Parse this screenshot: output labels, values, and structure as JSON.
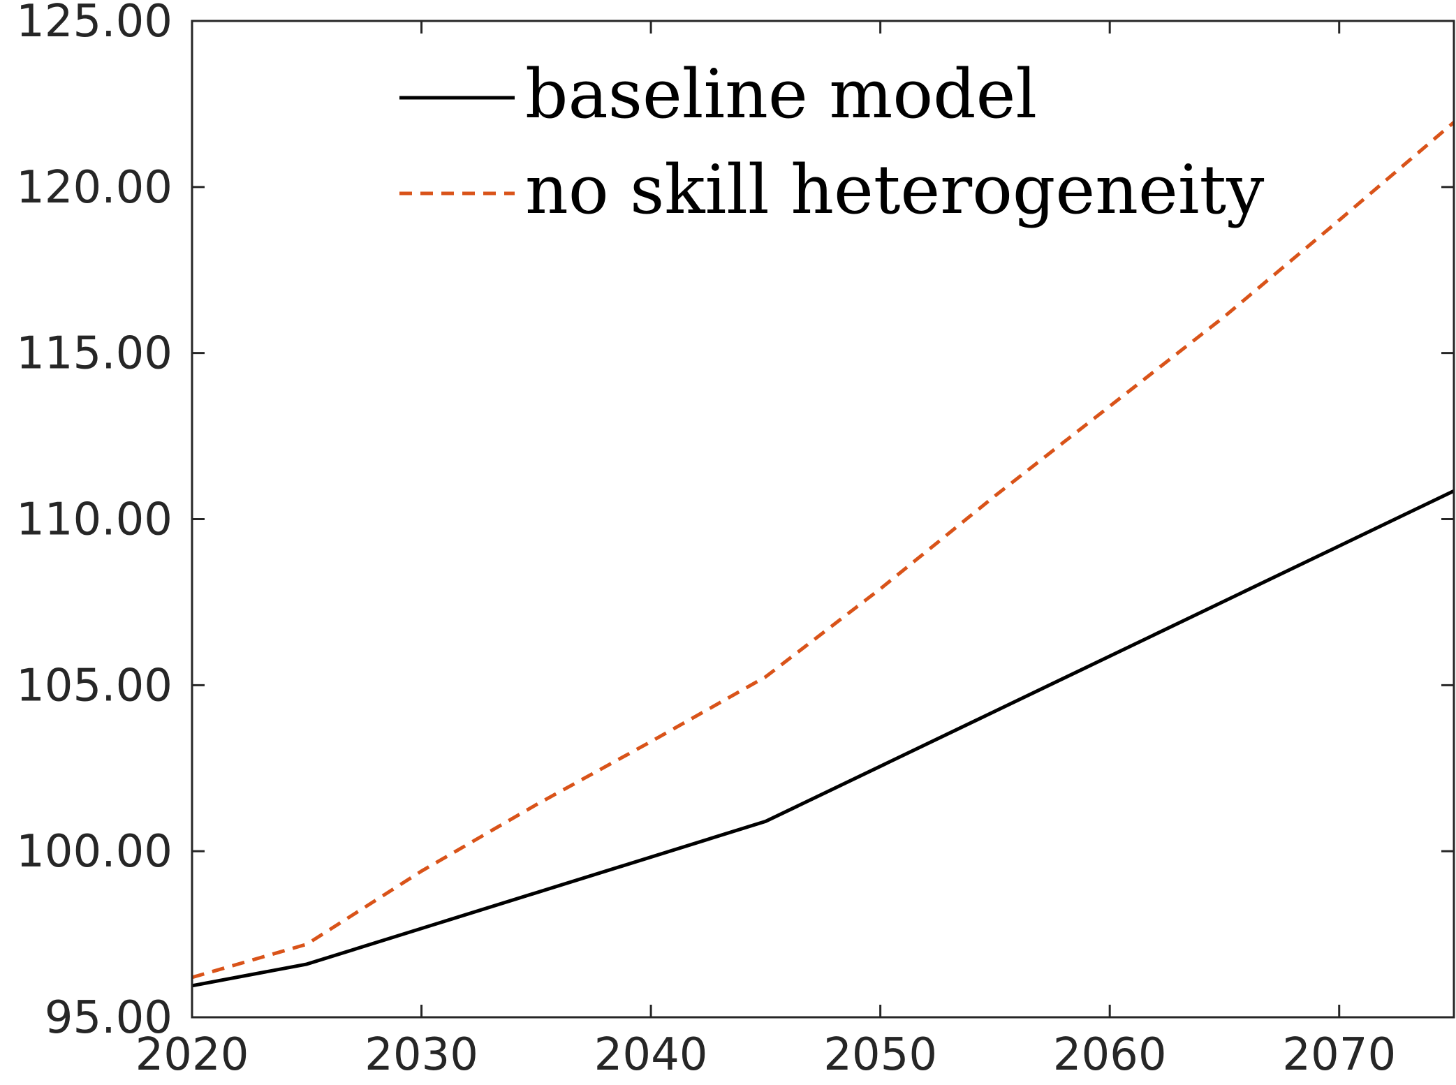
{
  "chart_data": {
    "type": "line",
    "xlim": [
      2020,
      2075
    ],
    "ylim": [
      95,
      125
    ],
    "x_ticks": [
      2020,
      2030,
      2040,
      2050,
      2060,
      2070
    ],
    "x_tick_labels": [
      "2020",
      "2030",
      "2040",
      "2050",
      "2060",
      "2070"
    ],
    "y_ticks": [
      95,
      100,
      105,
      110,
      115,
      120,
      125
    ],
    "y_tick_labels": [
      "95.00",
      "100.00",
      "105.00",
      "110.00",
      "115.00",
      "120.00",
      "125.00"
    ],
    "grid": false,
    "legend_position": "top",
    "series": [
      {
        "name": "baseline model",
        "style": "solid",
        "color": "#000000",
        "x": [
          2020,
          2025,
          2045,
          2075
        ],
        "y": [
          95.95,
          96.6,
          100.9,
          110.85
        ]
      },
      {
        "name": "no skill heterogeneity",
        "style": "dashed",
        "color": "#D95319",
        "x": [
          2020,
          2025,
          2030,
          2035,
          2040,
          2045,
          2050,
          2055,
          2060,
          2065,
          2070,
          2075
        ],
        "y": [
          96.2,
          97.2,
          99.4,
          101.4,
          103.3,
          105.25,
          107.9,
          110.7,
          113.4,
          116.1,
          119.0,
          121.95
        ]
      }
    ]
  }
}
